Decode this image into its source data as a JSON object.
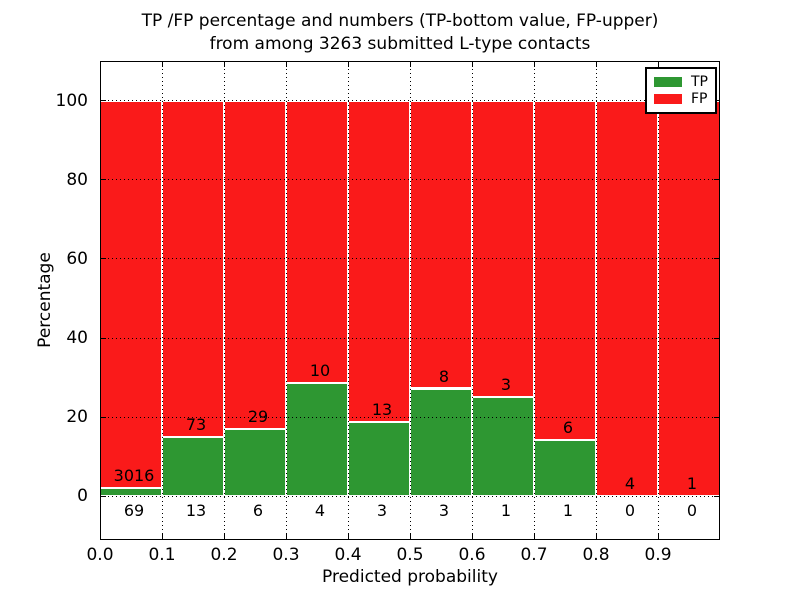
{
  "chart_data": {
    "type": "bar",
    "stacked_percentage": true,
    "title_line1": "TP /FP percentage and numbers (TP-bottom value, FP-upper)",
    "title_line2": "from among 3263 submitted L-type contacts",
    "xlabel": "Predicted probability",
    "ylabel": "Percentage",
    "total_contacts": 3263,
    "xlim": [
      0.0,
      1.0
    ],
    "ylim": [
      -11,
      110
    ],
    "x_tick_labels": [
      "0.0",
      "0.1",
      "0.2",
      "0.3",
      "0.4",
      "0.5",
      "0.6",
      "0.7",
      "0.8",
      "0.9"
    ],
    "y_tick_values": [
      0,
      20,
      40,
      60,
      80,
      100
    ],
    "grid_style": "dotted",
    "colors": {
      "tp": "#2e9732",
      "fp": "#fa1a1a",
      "bar_edge": "#ffffff",
      "axis": "#000000"
    },
    "legend": {
      "position": "upper-right",
      "entries": [
        {
          "label": "TP",
          "color": "#2e9732"
        },
        {
          "label": "FP",
          "color": "#fa1a1a"
        }
      ]
    },
    "bins": [
      {
        "x_range": [
          0.0,
          0.1
        ],
        "tp_count": 69,
        "fp_count": 3016,
        "tp_percent": 2.24,
        "fp_percent": 97.76
      },
      {
        "x_range": [
          0.1,
          0.2
        ],
        "tp_count": 13,
        "fp_count": 73,
        "tp_percent": 15.12,
        "fp_percent": 84.88
      },
      {
        "x_range": [
          0.2,
          0.3
        ],
        "tp_count": 6,
        "fp_count": 29,
        "tp_percent": 17.14,
        "fp_percent": 82.86
      },
      {
        "x_range": [
          0.3,
          0.4
        ],
        "tp_count": 4,
        "fp_count": 10,
        "tp_percent": 28.57,
        "fp_percent": 71.43
      },
      {
        "x_range": [
          0.4,
          0.5
        ],
        "tp_count": 3,
        "fp_count": 13,
        "tp_percent": 18.75,
        "fp_percent": 81.25
      },
      {
        "x_range": [
          0.5,
          0.6
        ],
        "tp_count": 3,
        "fp_count": 8,
        "tp_percent": 27.27,
        "fp_percent": 72.73
      },
      {
        "x_range": [
          0.6,
          0.7
        ],
        "tp_count": 1,
        "fp_count": 3,
        "tp_percent": 25.0,
        "fp_percent": 75.0
      },
      {
        "x_range": [
          0.7,
          0.8
        ],
        "tp_count": 1,
        "fp_count": 6,
        "tp_percent": 14.29,
        "fp_percent": 85.71
      },
      {
        "x_range": [
          0.8,
          0.9
        ],
        "tp_count": 0,
        "fp_count": 4,
        "tp_percent": 0.0,
        "fp_percent": 100.0
      },
      {
        "x_range": [
          0.9,
          1.0
        ],
        "tp_count": 0,
        "fp_count": 1,
        "tp_percent": 0.0,
        "fp_percent": 100.0
      }
    ]
  }
}
